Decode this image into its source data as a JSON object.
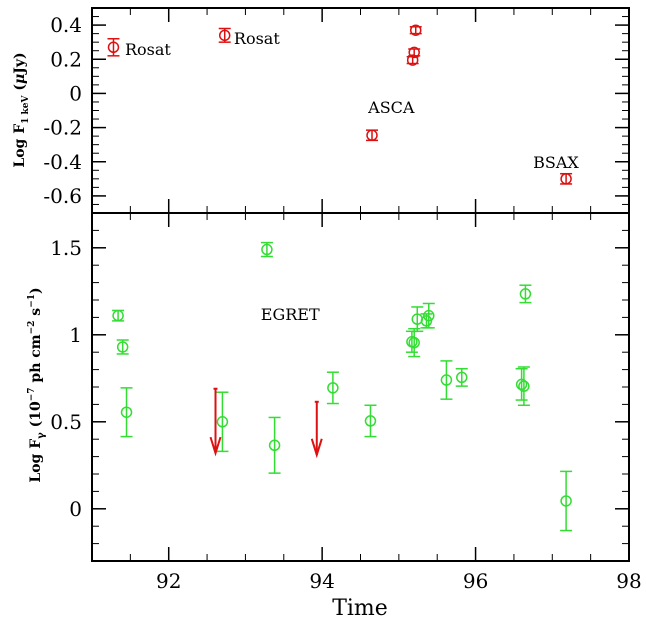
{
  "chart_data": [
    {
      "panel": "top",
      "type": "scatter",
      "ylabel": "Log F1 keV (μJy)",
      "xlim": [
        91.0,
        98.0
      ],
      "ylim": [
        -0.7,
        0.5
      ],
      "yticks": [
        {
          "value": 0.4,
          "label": "0.4"
        },
        {
          "value": 0.2,
          "label": "0.2"
        },
        {
          "value": 0,
          "label": "0"
        },
        {
          "value": -0.2,
          "label": "-0.2"
        },
        {
          "value": -0.4,
          "label": "-0.4"
        },
        {
          "value": -0.6,
          "label": "-0.6"
        }
      ],
      "color": "#dd1111",
      "points": [
        {
          "x": 91.28,
          "y": 0.27,
          "err": 0.05
        },
        {
          "x": 92.73,
          "y": 0.34,
          "err": 0.04
        },
        {
          "x": 94.65,
          "y": -0.245,
          "err": 0.03
        },
        {
          "x": 95.18,
          "y": 0.195,
          "err": 0.02
        },
        {
          "x": 95.2,
          "y": 0.24,
          "err": 0.02
        },
        {
          "x": 95.22,
          "y": 0.37,
          "err": 0.02
        },
        {
          "x": 97.18,
          "y": -0.5,
          "err": 0.03
        }
      ],
      "annotations": [
        {
          "text": "Rosat",
          "x": 91.43,
          "y": 0.26
        },
        {
          "text": "Rosat",
          "x": 92.85,
          "y": 0.325
        },
        {
          "text": "ASCA",
          "x": 94.6,
          "y": -0.08
        },
        {
          "text": "BSAX",
          "x": 96.75,
          "y": -0.4
        }
      ]
    },
    {
      "panel": "bottom",
      "type": "scatter",
      "xlabel": "Time",
      "ylabel": "Log Fγ (10⁻⁷ ph cm⁻² s⁻¹)",
      "xlim": [
        91.0,
        98.0
      ],
      "ylim": [
        -0.3,
        1.7
      ],
      "xticks": [
        {
          "value": 92,
          "label": "92"
        },
        {
          "value": 94,
          "label": "94"
        },
        {
          "value": 96,
          "label": "96"
        },
        {
          "value": 98,
          "label": "98"
        }
      ],
      "yticks": [
        {
          "value": 1.5,
          "label": "1.5"
        },
        {
          "value": 1,
          "label": "1"
        },
        {
          "value": 0.5,
          "label": "0.5"
        },
        {
          "value": 0,
          "label": "0"
        }
      ],
      "color": "#33dd33",
      "upper_limit_color": "#dd1111",
      "points": [
        {
          "x": 91.34,
          "y": 1.11,
          "err": 0.03
        },
        {
          "x": 91.4,
          "y": 0.93,
          "err": 0.04
        },
        {
          "x": 91.45,
          "y": 0.555,
          "err": 0.14
        },
        {
          "x": 92.7,
          "y": 0.5,
          "err": 0.17
        },
        {
          "x": 93.28,
          "y": 1.49,
          "err": 0.04
        },
        {
          "x": 93.38,
          "y": 0.365,
          "err": 0.16
        },
        {
          "x": 94.14,
          "y": 0.695,
          "err": 0.09
        },
        {
          "x": 94.63,
          "y": 0.505,
          "err": 0.09
        },
        {
          "x": 95.17,
          "y": 0.96,
          "err": 0.06
        },
        {
          "x": 95.2,
          "y": 0.955,
          "err": 0.08
        },
        {
          "x": 95.24,
          "y": 1.09,
          "err": 0.07
        },
        {
          "x": 95.36,
          "y": 1.08,
          "err": 0.04
        },
        {
          "x": 95.39,
          "y": 1.11,
          "err": 0.07
        },
        {
          "x": 95.62,
          "y": 0.74,
          "err": 0.11
        },
        {
          "x": 95.82,
          "y": 0.755,
          "err": 0.05
        },
        {
          "x": 96.6,
          "y": 0.715,
          "err": 0.09
        },
        {
          "x": 96.63,
          "y": 0.705,
          "err": 0.11
        },
        {
          "x": 96.65,
          "y": 1.235,
          "err": 0.05
        },
        {
          "x": 97.18,
          "y": 0.045,
          "err": 0.17
        }
      ],
      "upper_limits": [
        {
          "x": 92.61,
          "y": 0.69,
          "y_to": 0.32
        },
        {
          "x": 93.93,
          "y": 0.615,
          "y_to": 0.31
        }
      ],
      "annotations": [
        {
          "text": "EGRET",
          "x": 93.2,
          "y": 1.12
        }
      ]
    }
  ]
}
